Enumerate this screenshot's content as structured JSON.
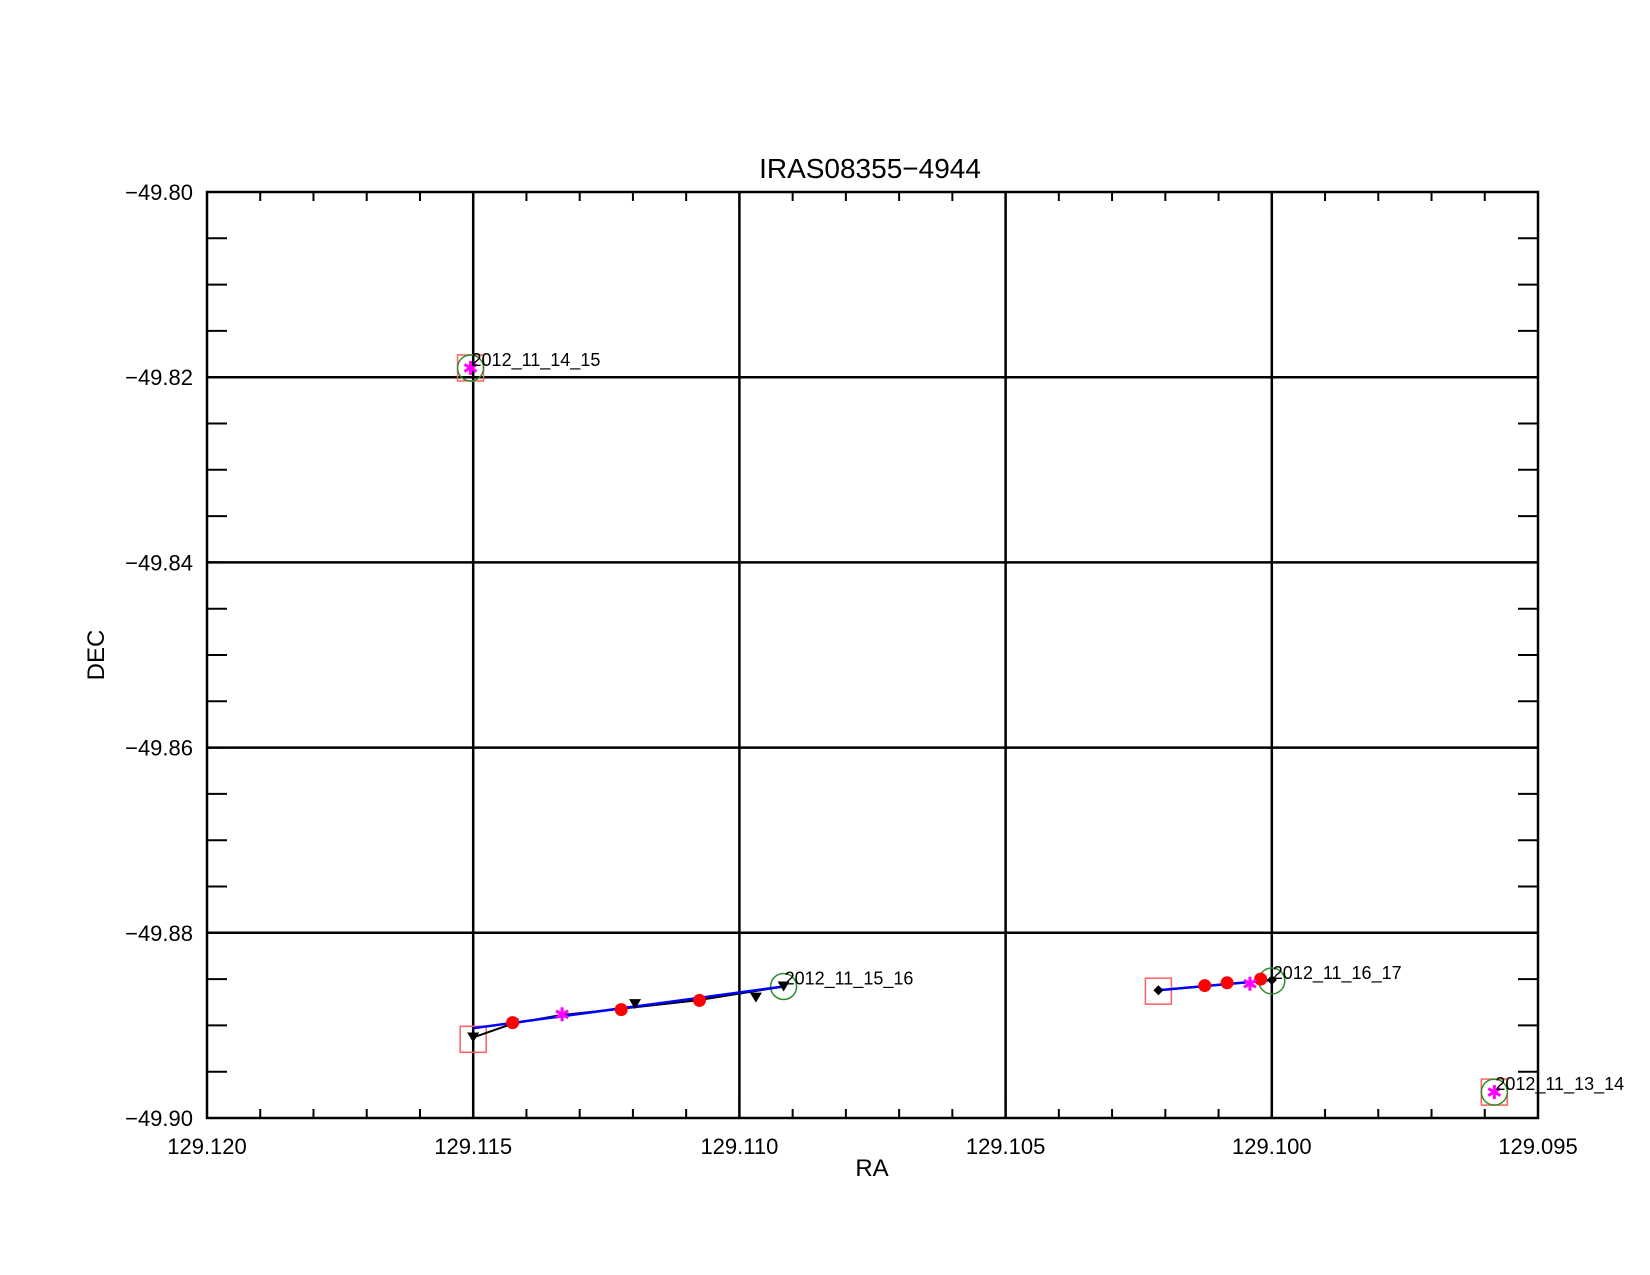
{
  "chart_data": {
    "type": "scatter",
    "title": "IRAS08355−4944",
    "xlabel": "RA",
    "ylabel": "DEC",
    "xlim": [
      129.12,
      129.095
    ],
    "ylim": [
      -49.9,
      -49.8
    ],
    "x_reversed": true,
    "grid": true,
    "xticks": [
      {
        "value": 129.12,
        "label": "129.120"
      },
      {
        "value": 129.115,
        "label": "129.115"
      },
      {
        "value": 129.11,
        "label": "129.110"
      },
      {
        "value": 129.105,
        "label": "129.105"
      },
      {
        "value": 129.1,
        "label": "129.100"
      },
      {
        "value": 129.095,
        "label": "129.095"
      }
    ],
    "yticks": [
      {
        "value": -49.8,
        "label": "−49.80"
      },
      {
        "value": -49.82,
        "label": "−49.82"
      },
      {
        "value": -49.84,
        "label": "−49.84"
      },
      {
        "value": -49.86,
        "label": "−49.86"
      },
      {
        "value": -49.88,
        "label": "−49.88"
      },
      {
        "value": -49.9,
        "label": "−49.90"
      }
    ],
    "colors": {
      "track": "#0000ff",
      "path": "#000000",
      "red_dot": "#ff0000",
      "asterisk": "#ff00ff",
      "start_square": "#ff6060",
      "end_circle": "#2e8b2e"
    },
    "groups": [
      {
        "label": "2012_11_14_15",
        "square": [
          129.11505,
          -49.819
        ],
        "circle": [
          129.11505,
          -49.819
        ],
        "asterisks": [
          [
            129.11505,
            -49.819
          ]
        ],
        "label_at": [
          129.11505,
          -49.819
        ]
      },
      {
        "label": "2012_11_15_16",
        "square": [
          129.115,
          -49.8915
        ],
        "circle": [
          129.10917,
          -49.8858
        ],
        "track": [
          [
            129.115,
            -49.8903
          ],
          [
            129.10917,
            -49.8858
          ]
        ],
        "path": [
          [
            129.115,
            -49.8913
          ],
          [
            129.11425,
            -49.8898
          ],
          [
            129.11337,
            -49.8889
          ],
          [
            129.11222,
            -49.8882
          ],
          [
            129.1108,
            -49.8873
          ],
          [
            129.10917,
            -49.8858
          ]
        ],
        "triangles": [
          [
            129.115,
            -49.8913
          ],
          [
            129.11425,
            -49.8898
          ],
          [
            129.11196,
            -49.8877
          ],
          [
            129.10969,
            -49.887
          ],
          [
            129.10917,
            -49.8858
          ]
        ],
        "red_dots": [
          [
            129.11426,
            -49.8897
          ],
          [
            129.11222,
            -49.8883
          ],
          [
            129.11075,
            -49.8873
          ]
        ],
        "asterisks": [
          [
            129.11333,
            -49.8888
          ]
        ],
        "label_at": [
          129.10917,
          -49.8858
        ]
      },
      {
        "label": "2012_11_16_17",
        "square": [
          129.10213,
          -49.8863
        ],
        "circle": [
          129.1,
          -49.8852
        ],
        "track": [
          [
            129.10213,
            -49.8862
          ],
          [
            129.1,
            -49.8851
          ]
        ],
        "path": [
          [
            129.10213,
            -49.8862
          ],
          [
            129.1,
            -49.8851
          ]
        ],
        "diamonds": [
          [
            129.10213,
            -49.8862
          ],
          [
            129.1,
            -49.8851
          ]
        ],
        "red_dots": [
          [
            129.10126,
            -49.8857
          ],
          [
            129.10084,
            -49.8854
          ],
          [
            129.10021,
            -49.885
          ]
        ],
        "asterisks": [
          [
            129.10041,
            -49.8855
          ]
        ],
        "label_at": [
          129.1,
          -49.8852
        ]
      },
      {
        "label": "2012_11_13_14",
        "square": [
          129.09582,
          -49.8972
        ],
        "circle": [
          129.09582,
          -49.8972
        ],
        "asterisks": [
          [
            129.09582,
            -49.8972
          ]
        ],
        "label_at": [
          129.09582,
          -49.8972
        ]
      }
    ]
  }
}
